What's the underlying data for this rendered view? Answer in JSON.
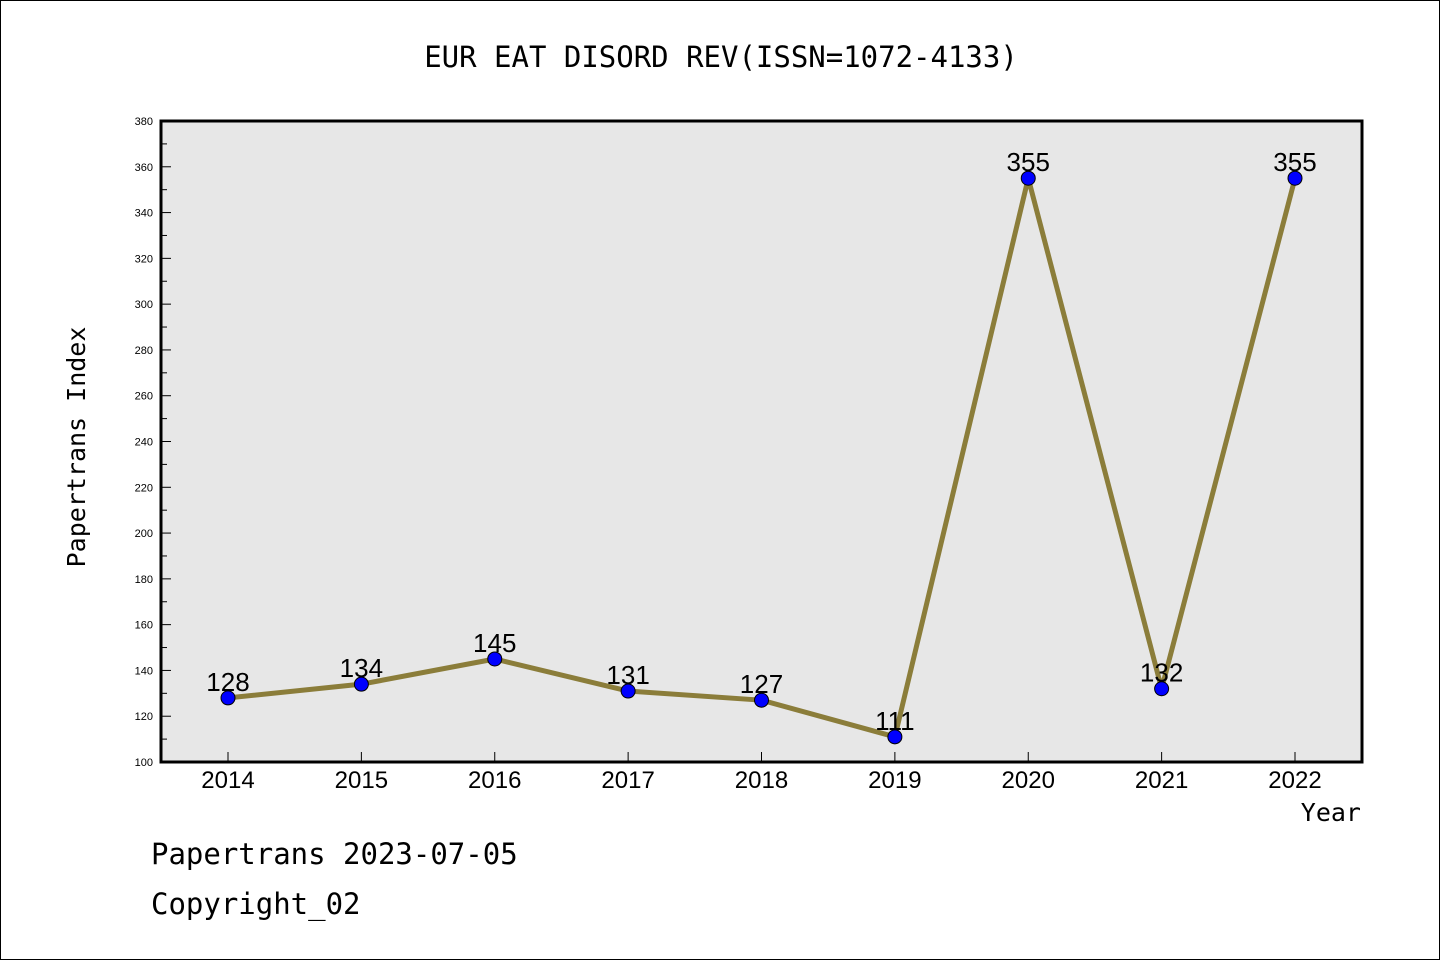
{
  "chart_data": {
    "type": "line",
    "title": "EUR EAT DISORD REV(ISSN=1072-4133)",
    "xlabel": "Year",
    "ylabel": "Papertrans Index",
    "categories": [
      "2014",
      "2015",
      "2016",
      "2017",
      "2018",
      "2019",
      "2020",
      "2021",
      "2022"
    ],
    "series": [
      {
        "values": [
          128,
          134,
          145,
          131,
          127,
          111,
          355,
          132,
          355
        ]
      }
    ],
    "data_labels": [
      "128",
      "134",
      "145",
      "131",
      "127",
      "111",
      "355",
      "132",
      "355"
    ],
    "ylim": [
      100,
      380
    ],
    "y_ticks": [
      "100",
      "120",
      "140",
      "160",
      "180",
      "200",
      "220",
      "240",
      "260",
      "280",
      "300",
      "320",
      "340",
      "360",
      "380"
    ],
    "grid": false,
    "legend": "none",
    "colors": {
      "line": "#8b7d3a",
      "marker": "#0000ff",
      "plot_background": "#e7e7e7",
      "axes": "#000000"
    }
  },
  "footer": {
    "date_line": "Papertrans 2023-07-05",
    "copyright_line": "Copyright_02"
  }
}
